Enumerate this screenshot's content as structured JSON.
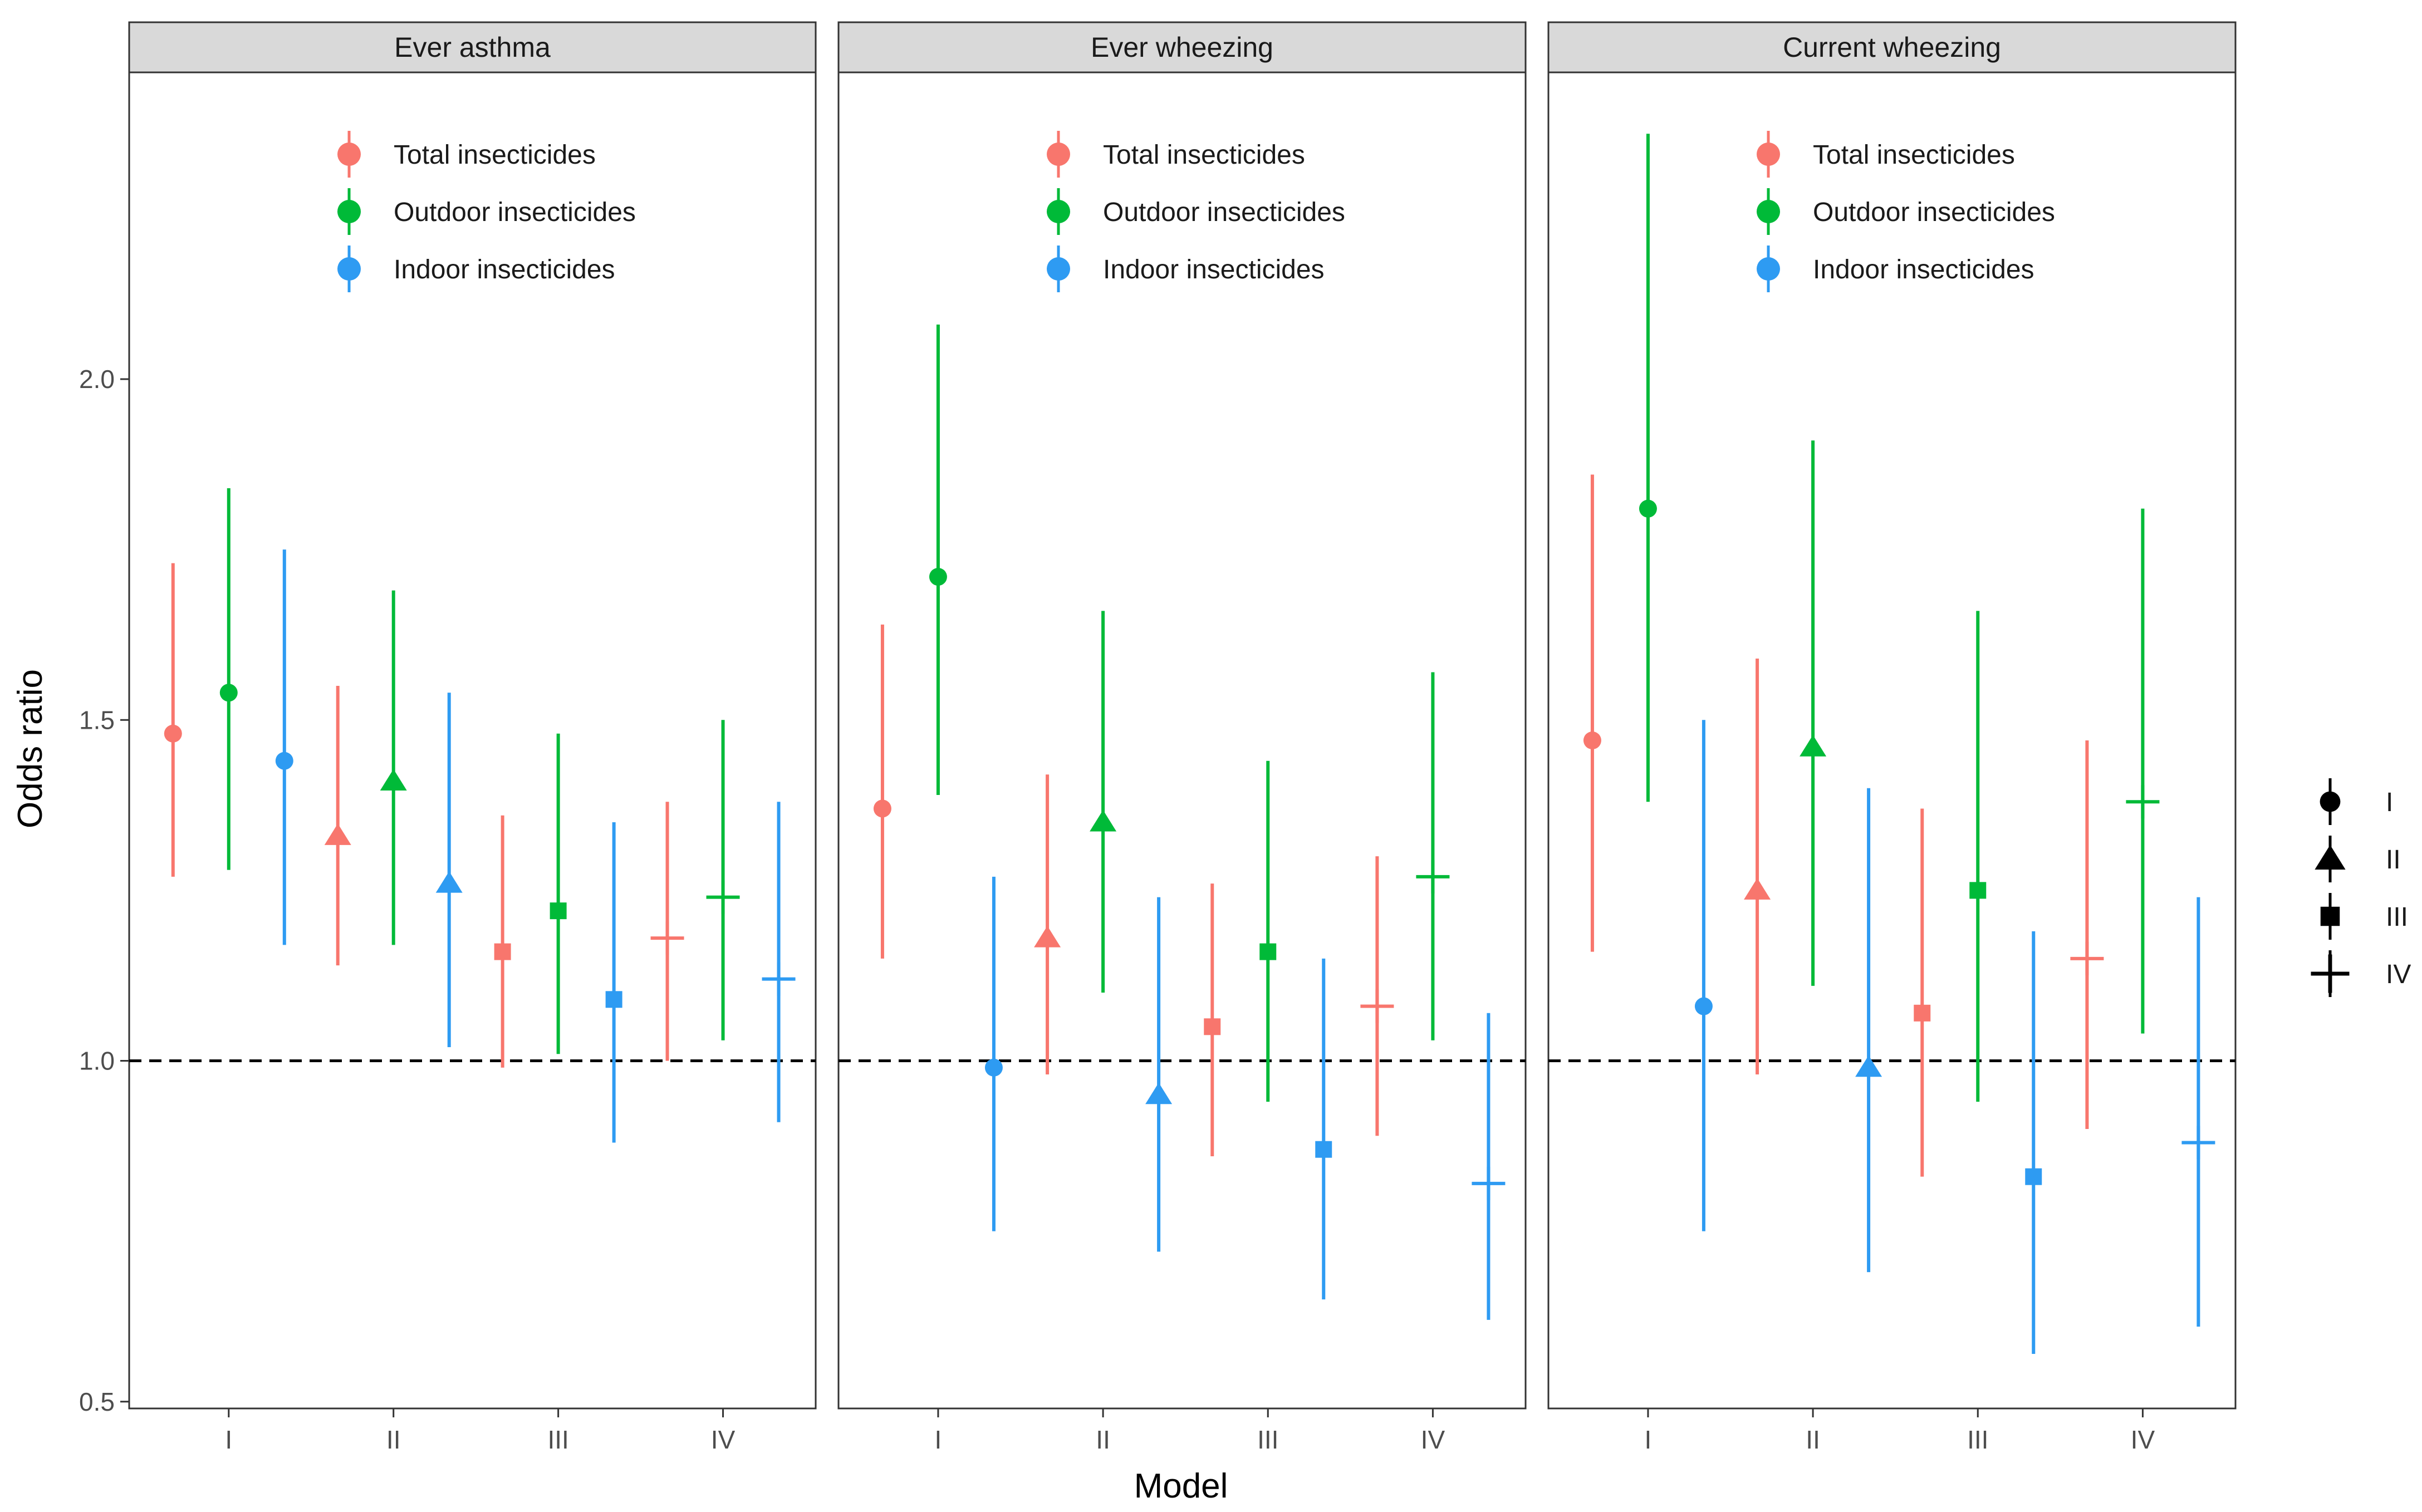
{
  "chart_data": {
    "type": "scatter",
    "subtype": "faceted point-range (odds ratio with confidence interval)",
    "xlabel": "Model",
    "ylabel": "Odds ratio",
    "categories": [
      "I",
      "II",
      "III",
      "IV"
    ],
    "y_ticks": [
      "0.5",
      "1.0",
      "1.5",
      "2.0"
    ],
    "ylim": [
      0.49,
      2.45
    ],
    "reference_line": {
      "y": 1.0,
      "style": "dashed",
      "color": "#000000"
    },
    "grid": false,
    "colors": {
      "Total insecticides": "#F8766D",
      "Outdoor insecticides": "#00BA38",
      "Indoor insecticides": "#2E9BF2"
    },
    "color_legend": {
      "placement": "top-center inside each panel",
      "entries": [
        "Total insecticides",
        "Outdoor insecticides",
        "Indoor insecticides"
      ]
    },
    "shape_legend": {
      "placement": "right",
      "entries": [
        {
          "label": "I",
          "shape": "circle"
        },
        {
          "label": "II",
          "shape": "triangle"
        },
        {
          "label": "III",
          "shape": "square"
        },
        {
          "label": "IV",
          "shape": "cross"
        }
      ]
    },
    "facets": [
      {
        "title": "Ever asthma",
        "series": [
          {
            "name": "Total insecticides",
            "estimate": [
              1.48,
              1.33,
              1.16,
              1.18
            ],
            "lower": [
              1.27,
              1.14,
              0.99,
              1.0
            ],
            "upper": [
              1.73,
              1.55,
              1.36,
              1.38
            ]
          },
          {
            "name": "Outdoor insecticides",
            "estimate": [
              1.54,
              1.41,
              1.22,
              1.24
            ],
            "lower": [
              1.28,
              1.17,
              1.01,
              1.03
            ],
            "upper": [
              1.84,
              1.69,
              1.48,
              1.5
            ]
          },
          {
            "name": "Indoor insecticides",
            "estimate": [
              1.44,
              1.26,
              1.09,
              1.12
            ],
            "lower": [
              1.17,
              1.02,
              0.88,
              0.91
            ],
            "upper": [
              1.75,
              1.54,
              1.35,
              1.38
            ]
          }
        ]
      },
      {
        "title": "Ever wheezing",
        "series": [
          {
            "name": "Total insecticides",
            "estimate": [
              1.37,
              1.18,
              1.05,
              1.08
            ],
            "lower": [
              1.15,
              0.98,
              0.86,
              0.89
            ],
            "upper": [
              1.64,
              1.42,
              1.26,
              1.3
            ]
          },
          {
            "name": "Outdoor insecticides",
            "estimate": [
              1.71,
              1.35,
              1.16,
              1.27
            ],
            "lower": [
              1.39,
              1.1,
              0.94,
              1.03
            ],
            "upper": [
              2.08,
              1.66,
              1.44,
              1.57
            ]
          },
          {
            "name": "Indoor insecticides",
            "estimate": [
              0.99,
              0.95,
              0.87,
              0.82
            ],
            "lower": [
              0.75,
              0.72,
              0.65,
              0.62
            ],
            "upper": [
              1.27,
              1.24,
              1.15,
              1.07
            ]
          }
        ]
      },
      {
        "title": "Current wheezing",
        "series": [
          {
            "name": "Total insecticides",
            "estimate": [
              1.47,
              1.25,
              1.07,
              1.15
            ],
            "lower": [
              1.16,
              0.98,
              0.83,
              0.9
            ],
            "upper": [
              1.86,
              1.59,
              1.37,
              1.47
            ]
          },
          {
            "name": "Outdoor insecticides",
            "estimate": [
              1.81,
              1.46,
              1.25,
              1.38
            ],
            "lower": [
              1.38,
              1.11,
              0.94,
              1.04
            ],
            "upper": [
              2.36,
              1.91,
              1.66,
              1.81
            ]
          },
          {
            "name": "Indoor insecticides",
            "estimate": [
              1.08,
              0.99,
              0.83,
              0.88
            ],
            "lower": [
              0.75,
              0.69,
              0.57,
              0.61
            ],
            "upper": [
              1.5,
              1.4,
              1.19,
              1.24
            ]
          }
        ]
      }
    ]
  }
}
